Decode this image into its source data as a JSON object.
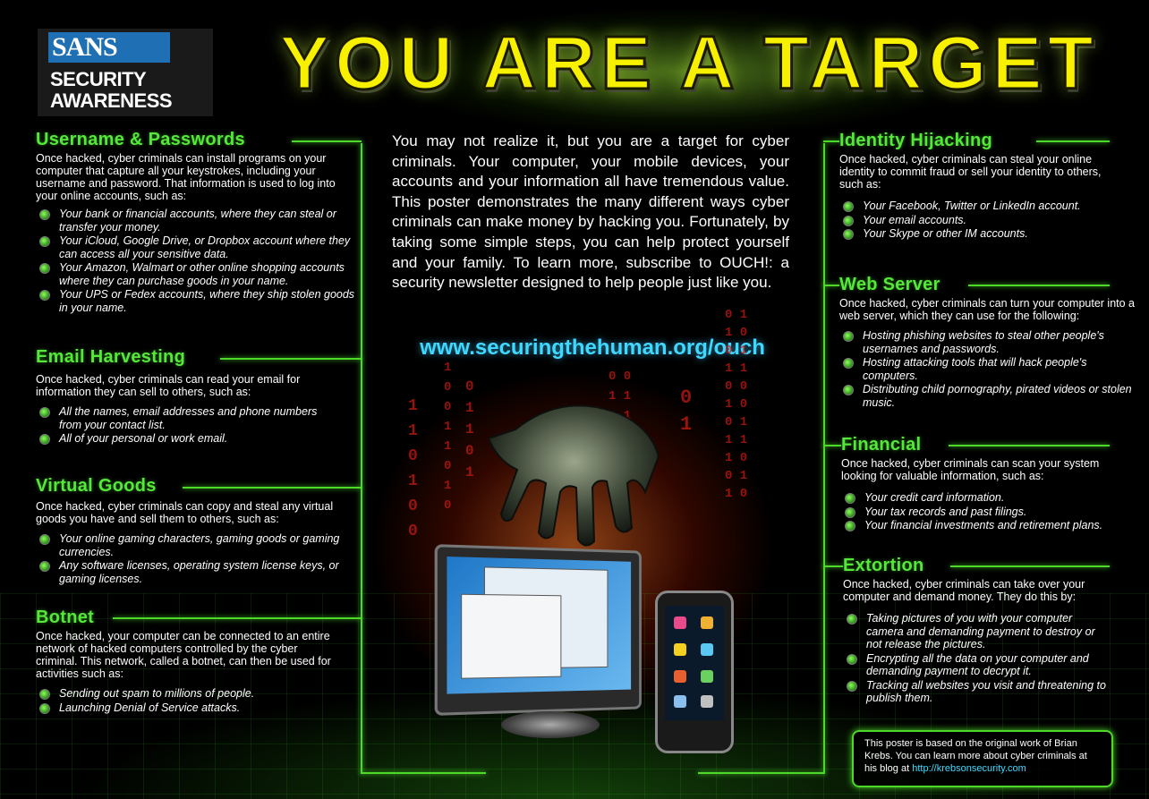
{
  "logo": {
    "brand": "SANS",
    "line1": "SECURITY",
    "line2": "AWARENESS",
    "brand_color": "#1f6fb4"
  },
  "title": "YOU ARE A TARGET",
  "intro": "You may not realize it, but you are a target for cyber criminals. Your computer, your mobile devices, your accounts and your information all have tremendous value. This poster demonstrates the many different ways cyber criminals can make money by hacking you. Fortunately, by taking some simple steps, you can help protect yourself and your family. To learn more, subscribe to OUCH!: a security newsletter designed to help people just like you.",
  "url": "www.securingthehuman.org/ouch",
  "sections": {
    "username": {
      "title": "Username & Passwords",
      "desc": "Once hacked, cyber criminals can install programs on your computer that capture all your keystrokes, including your username and password. That information is used to log into your online accounts, such as:",
      "items": [
        "Your bank or financial accounts, where they can steal or transfer your money.",
        "Your iCloud, Google Drive, or Dropbox account where they can access all your sensitive data.",
        "Your Amazon, Walmart or other online shopping accounts where they can purchase goods in your name.",
        "Your UPS or Fedex accounts, where they ship stolen goods in your name."
      ]
    },
    "email": {
      "title": "Email Harvesting",
      "desc": "Once hacked, cyber criminals can read your email for information they can sell to others, such as:",
      "items": [
        "All the names, email addresses and phone numbers from your contact list.",
        "All of your personal or work email."
      ]
    },
    "virtual": {
      "title": "Virtual Goods",
      "desc": "Once hacked, cyber criminals can copy and steal any virtual goods you have and sell them to others, such as:",
      "items": [
        "Your online gaming characters, gaming goods or gaming currencies.",
        "Any software licenses, operating system license keys, or gaming licenses."
      ]
    },
    "botnet": {
      "title": "Botnet",
      "desc": "Once hacked, your computer can be connected to an entire network of hacked computers controlled by the cyber criminal. This network, called a botnet, can then be used for activities such as:",
      "items": [
        "Sending out spam to millions of people.",
        "Launching Denial of Service attacks."
      ]
    },
    "identity": {
      "title": "Identity Hijacking",
      "desc": "Once hacked, cyber criminals can steal your online identity to commit fraud or sell your identity to others, such as:",
      "items": [
        "Your Facebook, Twitter or LinkedIn account.",
        "Your email accounts.",
        "Your Skype or other IM accounts."
      ]
    },
    "webserver": {
      "title": "Web Server",
      "desc": "Once hacked, cyber criminals can turn your computer into a web server, which they can use for the following:",
      "items": [
        "Hosting phishing websites to steal other people's usernames and passwords.",
        "Hosting attacking tools that will hack people's computers.",
        "Distributing child pornography, pirated videos or stolen music."
      ]
    },
    "financial": {
      "title": "Financial",
      "desc": "Once hacked, cyber criminals can scan your system looking for valuable information, such as:",
      "items": [
        "Your credit card information.",
        "Your tax records and past filings.",
        "Your financial investments and retirement plans."
      ]
    },
    "extortion": {
      "title": "Extortion",
      "desc": "Once hacked, cyber criminals can take over your computer and demand money. They do this by:",
      "items": [
        "Taking pictures of you with your computer camera and demanding payment to destroy or not release the pictures.",
        "Encrypting all the data on your computer and demanding payment to decrypt it.",
        "Tracking all websites you visit and threatening to publish them."
      ]
    }
  },
  "credit": {
    "text": "This poster is based on the original work of Brian Krebs. You can learn more about cyber criminals at his blog at",
    "link": "http://krebsonsecurity.com"
  },
  "colors": {
    "accent_green": "#55e83a",
    "title_yellow": "#f7f000",
    "link_cyan": "#3fd8ff",
    "binary_red": "#c71a14"
  }
}
